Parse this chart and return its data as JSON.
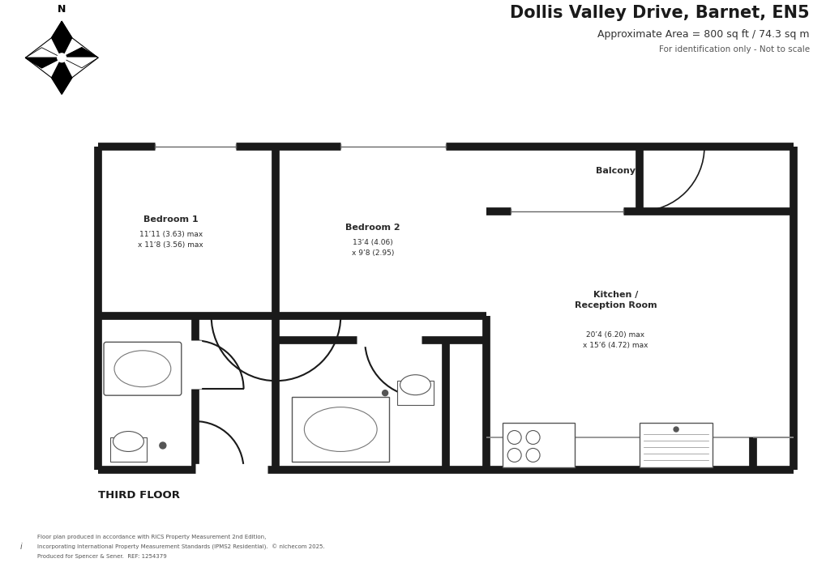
{
  "title": "Dollis Valley Drive, Barnet, EN5",
  "subtitle": "Approximate Area = 800 sq ft / 74.3 sq m",
  "subtitle2": "For identification only - Not to scale",
  "floor_label": "THIRD FLOOR",
  "room_bed1_label": "Bedroom 1",
  "room_bed1_sub": "11’11 (3.63) max\nx 11‘8 (3.56) max",
  "room_bed2_label": "Bedroom 2",
  "room_bed2_sub": "13’4 (4.06)\nx 9’8 (2.95)",
  "room_balcony_label": "Balcony",
  "room_kitchen_label": "Kitchen /\nReception Room",
  "room_kitchen_sub": "20’4 (6.20) max\nx 15’6 (4.72) max",
  "footer_line1": "Floor plan produced in accordance with RICS Property Measurement 2nd Edition,",
  "footer_line2": "Incorporating International Property Measurement Standards (IPMS2 Residential).  © nlchecom 2025.",
  "footer_line3": "Produced for Spencer & Sener.  REF: 1254379",
  "wall_color": "#1a1a1a",
  "bg_color": "#ffffff",
  "text_color": "#2a2a2a",
  "lw_thick": 7,
  "lw_thin": 1.2
}
